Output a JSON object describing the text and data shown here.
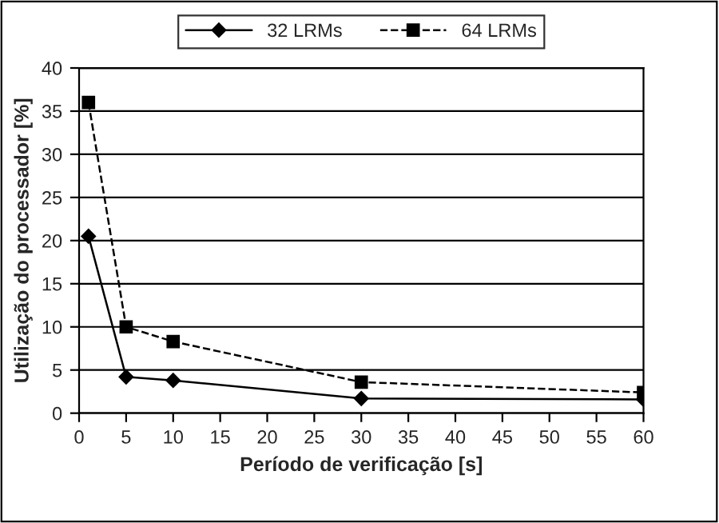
{
  "chart_data": {
    "type": "line",
    "xlabel": "Período de verificação [s]",
    "ylabel": "Utilização do processador [%]",
    "x": [
      1,
      5,
      10,
      30,
      60
    ],
    "series": [
      {
        "name": "32 LRMs",
        "color": "#000000",
        "values": [
          20.5,
          4.2,
          3.8,
          1.7,
          1.6
        ],
        "marker": "diamond",
        "line_style": "solid"
      },
      {
        "name": "64 LRMs",
        "color": "#000000",
        "values": [
          36.0,
          10.0,
          8.3,
          3.6,
          2.4
        ],
        "marker": "square",
        "line_style": "dashed"
      }
    ],
    "xlim": [
      0,
      60
    ],
    "xticks": [
      0,
      5,
      10,
      15,
      20,
      25,
      30,
      35,
      40,
      45,
      50,
      55,
      60
    ],
    "ylim": [
      0,
      40
    ],
    "yticks": [
      0,
      5,
      10,
      15,
      20,
      25,
      30,
      35,
      40
    ],
    "grid": "y",
    "legend": "top"
  }
}
